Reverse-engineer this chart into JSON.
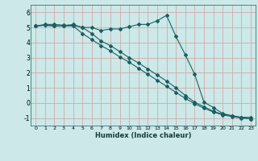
{
  "xlabel": "Humidex (Indice chaleur)",
  "xlim": [
    -0.5,
    23.5
  ],
  "ylim": [
    -1.5,
    6.5
  ],
  "yticks": [
    -1,
    0,
    1,
    2,
    3,
    4,
    5,
    6
  ],
  "xticks": [
    0,
    1,
    2,
    3,
    4,
    5,
    6,
    7,
    8,
    9,
    10,
    11,
    12,
    13,
    14,
    15,
    16,
    17,
    18,
    19,
    20,
    21,
    22,
    23
  ],
  "bg_color": "#cce8e8",
  "line_color": "#1a6060",
  "grid_color": "#b8d0d0",
  "line1_y": [
    5.1,
    5.2,
    5.2,
    5.15,
    5.15,
    5.0,
    5.0,
    4.8,
    4.9,
    4.9,
    5.05,
    5.2,
    5.2,
    5.45,
    5.8,
    4.4,
    3.2,
    1.9,
    0.05,
    -0.3,
    -0.7,
    -0.85,
    -0.95,
    -0.95
  ],
  "line2_y": [
    5.1,
    5.15,
    5.1,
    5.1,
    5.1,
    4.6,
    4.2,
    3.8,
    3.45,
    3.05,
    2.7,
    2.3,
    1.9,
    1.5,
    1.1,
    0.7,
    0.3,
    -0.05,
    -0.35,
    -0.6,
    -0.8,
    -0.9,
    -1.0,
    -1.05
  ],
  "line3_y": [
    5.1,
    5.15,
    5.1,
    5.1,
    5.2,
    5.0,
    4.6,
    4.1,
    3.8,
    3.4,
    3.0,
    2.65,
    2.25,
    1.85,
    1.45,
    1.0,
    0.5,
    0.05,
    -0.25,
    -0.55,
    -0.75,
    -0.85,
    -0.97,
    -1.05
  ]
}
